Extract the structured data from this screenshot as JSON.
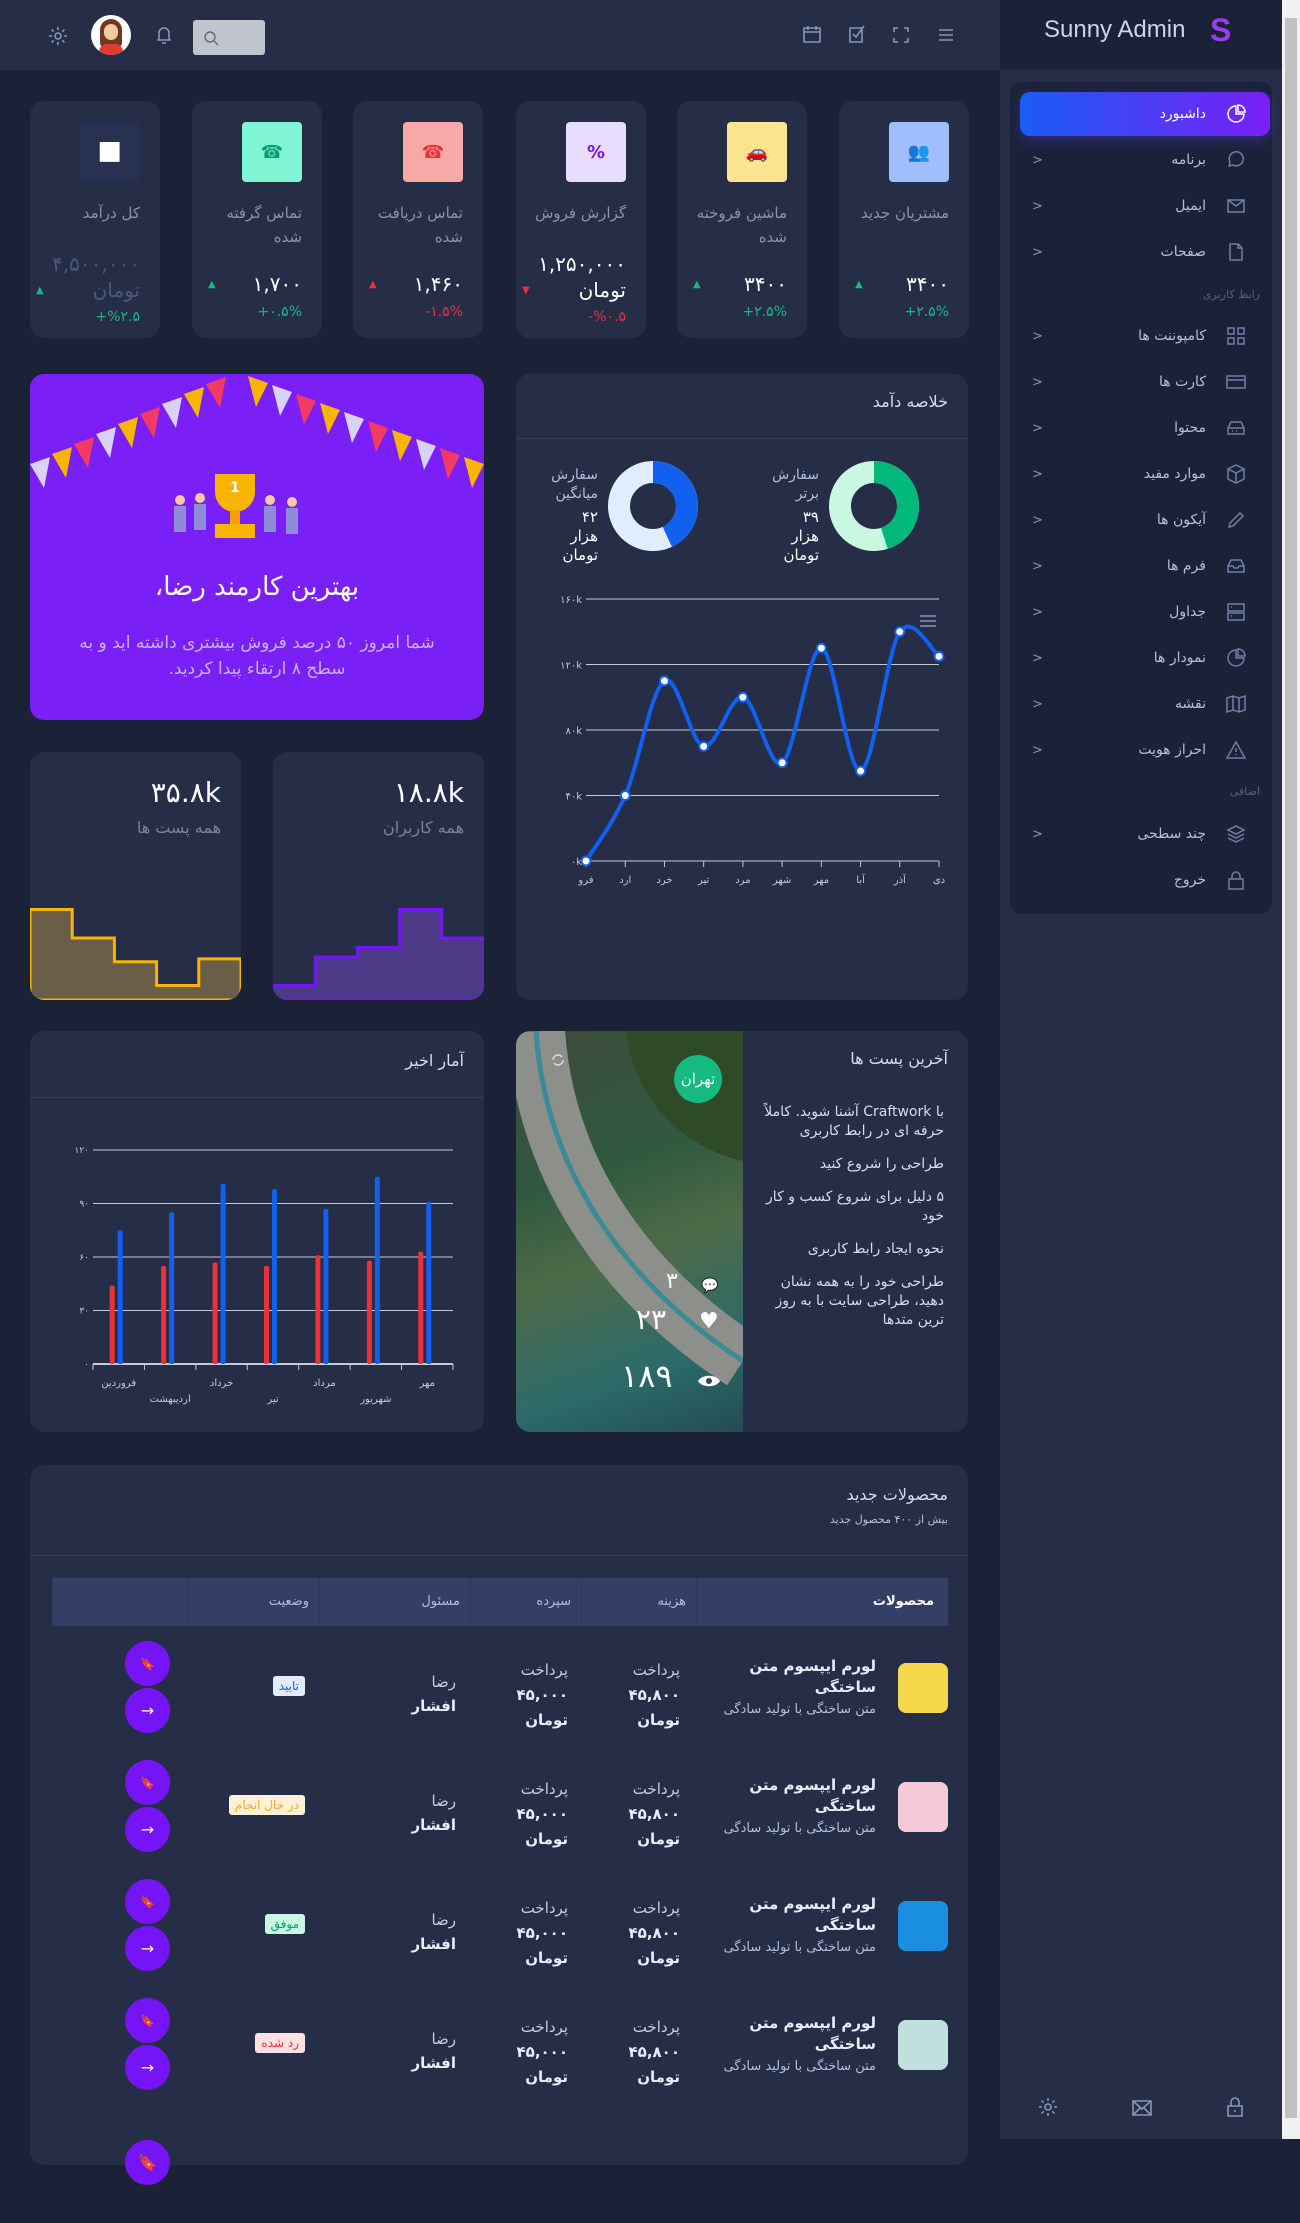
{
  "header": {
    "brand": "Sunny Admin",
    "brand_mark": "S",
    "search_placeholder": "",
    "icons": [
      "menu-icon",
      "fullscreen-icon",
      "checkbox-icon",
      "calendar-icon",
      "search-icon",
      "bell-icon",
      "avatar",
      "gear-icon"
    ]
  },
  "sidebar": {
    "items": [
      {
        "label": "داشبورد",
        "icon": "pie-icon",
        "active": true
      },
      {
        "label": "برنامه",
        "icon": "chat-icon"
      },
      {
        "label": "ایمیل",
        "icon": "mail-icon"
      },
      {
        "label": "صفحات",
        "icon": "file-icon"
      },
      {
        "label": "کامپوننت ها",
        "icon": "grid-icon"
      },
      {
        "label": "کارت ها",
        "icon": "card-icon"
      },
      {
        "label": "محتوا",
        "icon": "hdd-icon"
      },
      {
        "label": "موارد مفید",
        "icon": "box-icon"
      },
      {
        "label": "آیکون ها",
        "icon": "pencil-icon"
      },
      {
        "label": "فرم ها",
        "icon": "inbox-icon"
      },
      {
        "label": "جداول",
        "icon": "server-icon"
      },
      {
        "label": "نمودار ها",
        "icon": "pie-icon"
      },
      {
        "label": "نقشه",
        "icon": "map-icon"
      },
      {
        "label": "احراز هویت",
        "icon": "alert-icon"
      },
      {
        "label": "چند سطحی",
        "icon": "layers-icon"
      },
      {
        "label": "خروج",
        "icon": "lock-icon"
      }
    ],
    "sections": {
      "ui": "رابط کاربری",
      "extra": "اضافی"
    },
    "footer_icons": [
      "gear-icon",
      "mail-icon",
      "lock-icon"
    ]
  },
  "stats": [
    {
      "title": "مشتریان جدید",
      "value": "۳۴۰۰",
      "change": "۲.۵%+",
      "trend": "up",
      "icon": "users-icon",
      "bg": "#a0befc",
      "fg": "#1f5ff0"
    },
    {
      "title": "ماشین فروخته شده",
      "value": "۳۴۰۰",
      "change": "۲.۵%+",
      "trend": "up",
      "icon": "car-icon",
      "bg": "#fde58f",
      "fg": "#f5b400"
    },
    {
      "title": "گزارش فروش",
      "value": "۱,۲۵۰,۰۰۰ تومان",
      "change": "%۰.۵-",
      "trend": "down",
      "icon": "badge-percent-icon",
      "bg": "#e8dcff",
      "fg": "#7514f6"
    },
    {
      "title": "تماس دریافت شده",
      "value": "۱,۴۶۰",
      "change": "۱.۵%-",
      "trend": "up-red",
      "icon": "phone-incoming-icon",
      "bg": "#f9a8a8",
      "fg": "#e8333a"
    },
    {
      "title": "تماس گرفته شده",
      "value": "۱,۷۰۰",
      "change": "۰.۵%+",
      "trend": "up",
      "icon": "phone-outgoing-icon",
      "bg": "#7ff5d4",
      "fg": "#0c9f6e"
    },
    {
      "title": "کل درآمد",
      "value": "۴,۵۰۰,۰۰۰ تومان",
      "change": "%۲.۵+",
      "trend": "up",
      "icon": "chart-line-icon",
      "bg": "#283152",
      "fg": "#ffffff",
      "muted": true
    }
  ],
  "celebration": {
    "title": "بهترین کارمند رضا،",
    "text": "شما امروز ۵۰ درصد فروش بیشتری داشته اید و به سطح ۸ ارتقاء پیدا کردید.",
    "trophy_number": "1"
  },
  "mini_cards": [
    {
      "value": "۱۸.۸k",
      "label": "همه کاربران",
      "color": "#7514f6",
      "fill": "#4c3a86",
      "steps": [
        1,
        4,
        5,
        9,
        6
      ]
    },
    {
      "value": "۳۵.۸k",
      "label": "همه پست ها",
      "color": "#f7b500",
      "fill": "#6b5e48",
      "steps": [
        9,
        6,
        3.5,
        1,
        3.8
      ]
    }
  ],
  "revenue": {
    "title": "خلاصه دآمد",
    "donuts": [
      {
        "label": "سفارش برتر",
        "value": "۳۹",
        "unit": "هزار",
        "currency": "تومان",
        "percent": 45,
        "color": "#00b87c",
        "track": "#c9f7e2"
      },
      {
        "label": "سفارش میانگین",
        "value": "۴۲",
        "unit": "هزار",
        "currency": "تومان",
        "percent": 43,
        "color": "#1160f0",
        "track": "#e1ecfd"
      }
    ]
  },
  "recent_stats": {
    "title": "آمار اخیر"
  },
  "posts": {
    "title": "آخرین پست ها",
    "items": [
      "با Craftwork آشنا شوید. کاملاً حرفه ای در رابط کاربری",
      "طراحی را شروع کنید",
      "۵ دلیل برای شروع کسب و کار خود",
      "نحوه ایجاد رابط کاربری",
      "طراحی خود را به همه نشان دهید، طراحی سایت با به روز ترین متدها"
    ],
    "city": "تهران",
    "comments": "۳",
    "likes": "۲۳",
    "views": "۱۸۹"
  },
  "products": {
    "title": "محصولات جدید",
    "subtitle": "بیش از ۴۰۰ محصول جدید",
    "columns": [
      "محصولات",
      "هزینه",
      "سپرده",
      "مسئول",
      "وضعیت",
      ""
    ],
    "rows": [
      {
        "name": "لورم ایپسوم متن ساختگی",
        "desc": "متن ساختگی با تولید سادگی",
        "cost": [
          "پرداخت",
          "۴۵,۸۰۰",
          "تومان"
        ],
        "deposit": [
          "پرداخت",
          "۴۵,۰۰۰",
          "تومان"
        ],
        "manager": [
          "رضا",
          "افشار"
        ],
        "status": "تایید",
        "status_bg": "#e1ecfd",
        "status_fg": "#1160f0",
        "thumb": "#f7d84a"
      },
      {
        "name": "لورم ایپسوم متن ساختگی",
        "desc": "متن ساختگی با تولید سادگی",
        "cost": [
          "پرداخت",
          "۴۵,۸۰۰",
          "تومان"
        ],
        "deposit": [
          "پرداخت",
          "۴۵,۰۰۰",
          "تومان"
        ],
        "manager": [
          "رضا",
          "افشار"
        ],
        "status": "در حال انجام",
        "status_bg": "#fff1d6",
        "status_fg": "#f5a623",
        "thumb": "#f6c9d6"
      },
      {
        "name": "لورم ایپسوم متن ساختگی",
        "desc": "متن ساختگی با تولید سادگی",
        "cost": [
          "پرداخت",
          "۴۵,۸۰۰",
          "تومان"
        ],
        "deposit": [
          "پرداخت",
          "۴۵,۰۰۰",
          "تومان"
        ],
        "manager": [
          "رضا",
          "افشار"
        ],
        "status": "موفق",
        "status_bg": "#c9f7e2",
        "status_fg": "#0c9f6e",
        "thumb": "#1a8ee0"
      },
      {
        "name": "لورم ایپسوم متن ساختگی",
        "desc": "متن ساختگی با تولید سادگی",
        "cost": [
          "پرداخت",
          "۴۵,۸۰۰",
          "تومان"
        ],
        "deposit": [
          "پرداخت",
          "۴۵,۰۰۰",
          "تومان"
        ],
        "manager": [
          "رضا",
          "افشار"
        ],
        "status": "رد شده",
        "status_bg": "#ffe0e3",
        "status_fg": "#e8333a",
        "thumb": "#bfe0dd"
      }
    ]
  },
  "chart_data": [
    {
      "type": "line",
      "x": [
        "فرو",
        "ارد",
        "خرد",
        "تیر",
        "مرد",
        "شهر",
        "مهر",
        "آبا",
        "آذر",
        "دی"
      ],
      "yticks": [
        "۰k",
        "۴۰k",
        "۸۰k",
        "۱۲۰k",
        "۱۶۰k"
      ],
      "ylim": [
        0,
        160
      ],
      "series": [
        {
          "values": [
            0,
            40,
            110,
            70,
            100,
            60,
            130,
            55,
            140,
            125
          ],
          "color": "#1160f0"
        }
      ],
      "grid": true
    },
    {
      "type": "bar",
      "categories": [
        "فروردین",
        "اردیبهشت",
        "خرداد",
        "تیر",
        "مرداد",
        "شهریور",
        "مهر"
      ],
      "yticks": [
        "۰",
        "۳۰",
        "۶۰",
        "۹۰",
        "۱۲۰"
      ],
      "ylim": [
        0,
        120
      ],
      "series": [
        {
          "values": [
            44,
            55,
            57,
            55,
            61,
            58,
            63
          ],
          "color": "#e8333a"
        },
        {
          "values": [
            75,
            85,
            101,
            98,
            87,
            105,
            91
          ],
          "color": "#1160f0"
        }
      ],
      "grid": true
    }
  ]
}
